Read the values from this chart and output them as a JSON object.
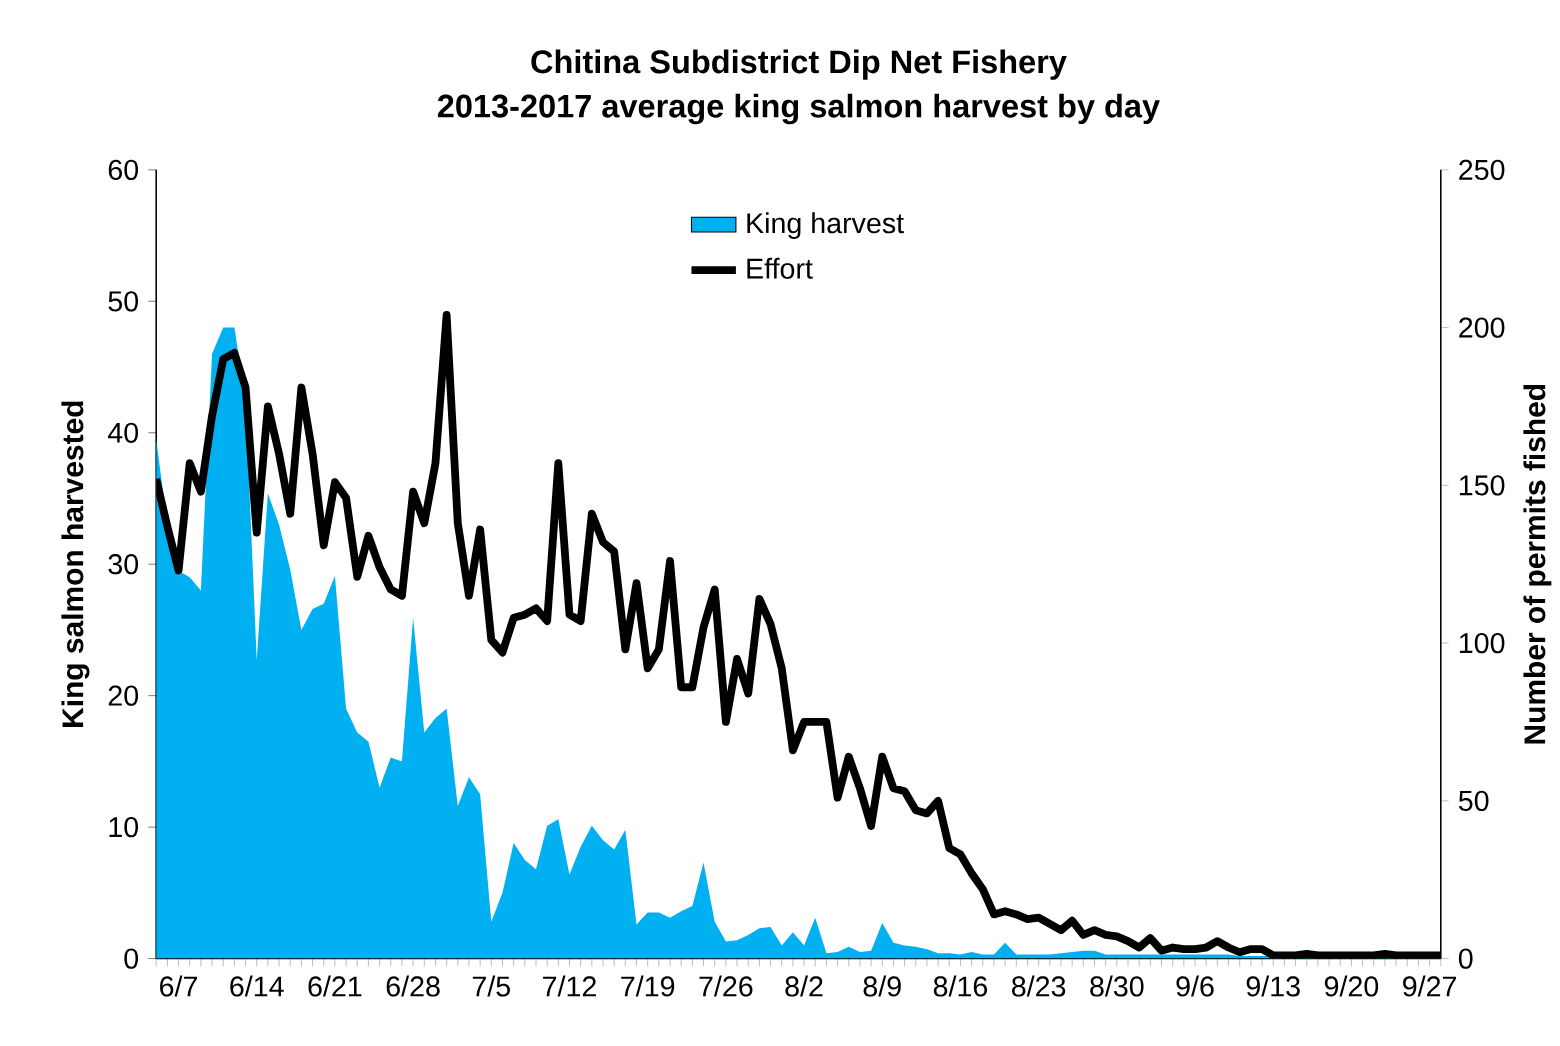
{
  "chart_data": {
    "type": "area",
    "title": "Chitina Subdistrict Dip Net Fishery",
    "subtitle": "2013-2017 average king salmon harvest by day",
    "ylabel": "King salmon harvested",
    "y2label": "Number of permits fished",
    "categories": [
      null,
      null,
      "6/7",
      null,
      null,
      null,
      null,
      null,
      null,
      "6/14",
      null,
      null,
      null,
      null,
      null,
      null,
      "6/21",
      null,
      null,
      null,
      null,
      null,
      null,
      "6/28",
      null,
      null,
      null,
      null,
      null,
      null,
      "7/5",
      null,
      null,
      null,
      null,
      null,
      null,
      "7/12",
      null,
      null,
      null,
      null,
      null,
      null,
      "7/19",
      null,
      null,
      null,
      null,
      null,
      null,
      "7/26",
      null,
      null,
      null,
      null,
      null,
      null,
      "8/2",
      null,
      null,
      null,
      null,
      null,
      null,
      "8/9",
      null,
      null,
      null,
      null,
      null,
      null,
      "8/16",
      null,
      null,
      null,
      null,
      null,
      null,
      "8/23",
      null,
      null,
      null,
      null,
      null,
      null,
      "8/30",
      null,
      null,
      null,
      null,
      null,
      null,
      "9/6",
      null,
      null,
      null,
      null,
      null,
      null,
      "9/13",
      null,
      null,
      null,
      null,
      null,
      null,
      "9/20",
      null,
      null,
      null,
      null,
      null,
      null,
      "9/27",
      null
    ],
    "series": [
      {
        "name": "King harvest",
        "color": "#00b0f0",
        "values": [
          39.5,
          33,
          29.5,
          29,
          28,
          46,
          48,
          48,
          42.5,
          22.7,
          35.4,
          33,
          29.6,
          25,
          26.6,
          27,
          29.1,
          19,
          17.2,
          16.5,
          13,
          15.3,
          15,
          25.9,
          17.2,
          18.3,
          19,
          11.6,
          13.8,
          12.5,
          2.8,
          5,
          8.8,
          7.5,
          6.8,
          10.1,
          10.6,
          6.4,
          8.5,
          10.1,
          9,
          8.3,
          9.8,
          2.6,
          3.5,
          3.5,
          3.1,
          3.6,
          4,
          7.3,
          2.8,
          1.3,
          1.4,
          1.8,
          2.3,
          2.4,
          1,
          2,
          1,
          3.1,
          0.4,
          0.5,
          0.9,
          0.5,
          0.6,
          2.7,
          1.2,
          1,
          0.9,
          0.7,
          0.4,
          0.4,
          0.3,
          0.5,
          0.3,
          0.3,
          1.2,
          0.3,
          0.3,
          0.3,
          0.3,
          0.4,
          0.5,
          0.6,
          0.6,
          0.3,
          0.3,
          0.3,
          0.3,
          0.3,
          0.3,
          0.3,
          0.3,
          0.3,
          0.3,
          0.3,
          0.3,
          0.2,
          0.2,
          0.2,
          0.2,
          0.2,
          0.2,
          0.2,
          0.2,
          0.2,
          0.2,
          0.2,
          0.2,
          0.2,
          0.2,
          0.2,
          0.2,
          0.2,
          0.2,
          0.2
        ]
      },
      {
        "name": "Effort",
        "type": "line",
        "axis": "y2",
        "color": "#000000",
        "values": [
          152,
          137,
          123,
          157,
          148,
          172,
          190,
          192,
          181,
          135,
          175,
          160,
          141,
          181,
          160,
          131,
          151,
          146,
          121,
          134,
          124,
          117,
          115,
          148,
          138,
          157,
          204,
          138,
          115,
          136,
          101,
          97,
          108,
          109,
          111,
          107,
          157,
          109,
          107,
          141,
          132,
          129,
          98,
          119,
          92,
          98,
          126,
          86,
          86,
          105,
          117,
          75,
          95,
          84,
          114,
          106,
          92,
          66,
          75,
          75,
          75,
          51,
          64,
          54,
          42,
          64,
          54,
          53,
          47,
          46,
          50,
          35,
          33,
          27,
          22,
          14,
          15,
          14,
          12.5,
          13,
          11,
          9,
          12,
          7.5,
          9,
          7.5,
          7,
          5.5,
          3.5,
          6.5,
          2.5,
          3.5,
          3,
          3,
          3.5,
          5.5,
          3.5,
          2,
          3,
          3,
          1,
          1,
          1,
          1.5,
          1,
          1,
          1,
          1,
          1,
          1,
          1.5,
          1,
          1,
          1,
          1,
          1
        ]
      }
    ],
    "ylim": [
      0,
      60
    ],
    "yticks": [
      0,
      10,
      20,
      30,
      40,
      50,
      60
    ],
    "y2lim": [
      0,
      250
    ],
    "y2ticks": [
      0,
      50,
      100,
      150,
      200,
      250
    ],
    "legend": "top"
  }
}
